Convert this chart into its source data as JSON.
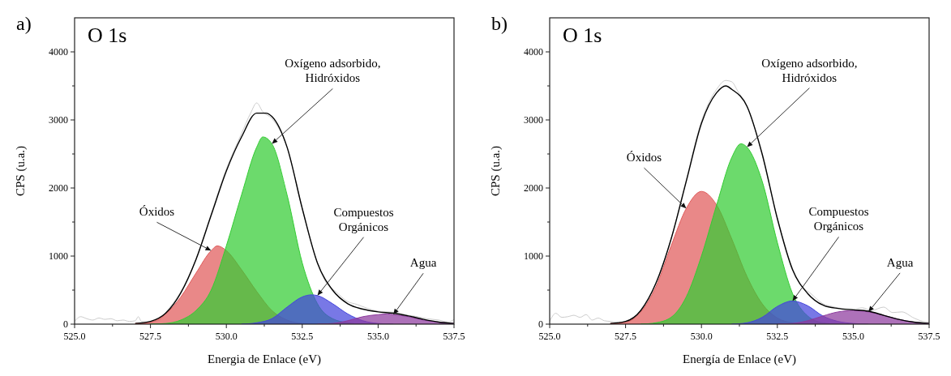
{
  "chart_data": [
    {
      "type": "area",
      "title": "O 1s",
      "xlabel": "Energia de Enlace (eV)",
      "ylabel": "CPS (u.a.)",
      "xlim": [
        525,
        537.5
      ],
      "ylim": [
        0,
        4500
      ],
      "xticks": [
        {
          "value": 525,
          "label": "525.0"
        },
        {
          "value": 526.25,
          "label": null
        },
        {
          "value": 527.5,
          "label": "527.5"
        },
        {
          "value": 528.75,
          "label": null
        },
        {
          "value": 530,
          "label": "530.0"
        },
        {
          "value": 531.25,
          "label": null
        },
        {
          "value": 532.5,
          "label": "532.5"
        },
        {
          "value": 533.75,
          "label": null
        },
        {
          "value": 535,
          "label": "535.0"
        },
        {
          "value": 536.25,
          "label": null
        },
        {
          "value": 537.5,
          "label": "537.5"
        }
      ],
      "yticks": [
        0,
        {
          "value": 500,
          "label": null
        },
        1000,
        {
          "value": 1500,
          "label": null
        },
        2000,
        {
          "value": 2500,
          "label": null
        },
        3000,
        {
          "value": 3500,
          "label": null
        },
        4000
      ],
      "grid": false,
      "annotations": [
        "a)",
        {
          "text": "Óxidos",
          "x": 529.5,
          "y": 1080
        },
        {
          "text": "Oxígeno adsorbido,\nHidróxidos",
          "x": 531.5,
          "y": 2650
        },
        {
          "text": "Compuestos\nOrgánicos",
          "x": 533,
          "y": 420
        },
        {
          "text": "Agua",
          "x": 535.5,
          "y": 140
        }
      ],
      "series": [
        {
          "type": "line",
          "color": "#cccccc",
          "x": [
            525,
            525.2,
            525.4,
            525.6,
            525.8,
            526,
            526.2,
            526.4,
            526.6,
            526.8,
            527,
            527.1,
            527.2,
            527.4,
            527.6,
            527.8,
            528,
            528.5,
            529,
            529.5,
            530,
            530.5,
            530.8,
            531,
            531.2,
            531.5,
            532,
            532.5,
            533,
            533.3,
            533.6,
            534,
            534.3,
            534.6,
            535,
            535.3,
            535.6,
            536,
            536.3,
            536.6,
            537,
            537.3,
            537.5
          ],
          "values": [
            40,
            110,
            80,
            60,
            90,
            70,
            80,
            50,
            60,
            40,
            50,
            110,
            40,
            30,
            40,
            60,
            170,
            480,
            960,
            1620,
            2280,
            2800,
            3100,
            3250,
            3120,
            3020,
            2600,
            1700,
            900,
            600,
            480,
            330,
            290,
            240,
            190,
            180,
            170,
            130,
            110,
            80,
            60,
            30,
            70
          ]
        },
        {
          "color": "#e05a5a",
          "x": [
            527,
            527.5,
            528,
            528.5,
            529,
            529.5,
            529.7,
            530,
            530.5,
            531,
            531.5,
            532,
            532.5,
            533
          ],
          "values": [
            10,
            30,
            150,
            400,
            750,
            1080,
            1150,
            1080,
            800,
            480,
            200,
            60,
            10,
            0
          ]
        },
        {
          "color": "#33cc33",
          "x": [
            527.5,
            528,
            528.5,
            529,
            529.5,
            530,
            530.5,
            531,
            531.2,
            531.5,
            532,
            532.5,
            533,
            533.5,
            534,
            534.5
          ],
          "values": [
            0,
            10,
            60,
            200,
            500,
            1150,
            1900,
            2600,
            2750,
            2650,
            1900,
            900,
            300,
            80,
            20,
            0
          ]
        },
        {
          "color": "#4444dd",
          "x": [
            530.5,
            531,
            531.5,
            532,
            532.5,
            532.8,
            533,
            533.5,
            534,
            534.5,
            535,
            535.5
          ],
          "values": [
            0,
            20,
            80,
            250,
            400,
            430,
            420,
            300,
            150,
            50,
            10,
            0
          ]
        },
        {
          "color": "#8e3a9e",
          "x": [
            533,
            533.5,
            534,
            534.5,
            535,
            535.3,
            535.5,
            536,
            536.5,
            537,
            537.5
          ],
          "values": [
            0,
            10,
            50,
            110,
            140,
            150,
            140,
            110,
            60,
            30,
            10
          ]
        },
        {
          "type": "line",
          "color": "#000000",
          "x": [
            527,
            527.5,
            528,
            528.5,
            529,
            529.5,
            530,
            530.5,
            531,
            531.3,
            531.5,
            532,
            532.5,
            533,
            533.5,
            534,
            534.5,
            535,
            535.5,
            536,
            536.5,
            537,
            537.5
          ],
          "values": [
            10,
            40,
            160,
            460,
            950,
            1600,
            2250,
            2750,
            3100,
            3100,
            3050,
            2600,
            1700,
            900,
            500,
            300,
            220,
            180,
            160,
            120,
            70,
            30,
            10
          ]
        }
      ]
    },
    {
      "type": "area",
      "title": "O 1s",
      "xlabel": "Energía de Enlace (eV)",
      "ylabel": "CPS (u.a.)",
      "xlim": [
        525,
        537.5
      ],
      "ylim": [
        0,
        4500
      ],
      "xticks": [
        {
          "value": 525,
          "label": "525.0"
        },
        {
          "value": 526.25,
          "label": null
        },
        {
          "value": 527.5,
          "label": "527.5"
        },
        {
          "value": 528.75,
          "label": null
        },
        {
          "value": 530,
          "label": "530.0"
        },
        {
          "value": 531.25,
          "label": null
        },
        {
          "value": 532.5,
          "label": "532.5"
        },
        {
          "value": 533.75,
          "label": null
        },
        {
          "value": 535,
          "label": "535.0"
        },
        {
          "value": 536.25,
          "label": null
        },
        {
          "value": 537.5,
          "label": "537.5"
        }
      ],
      "yticks": [
        0,
        {
          "value": 500,
          "label": null
        },
        1000,
        {
          "value": 1500,
          "label": null
        },
        2000,
        {
          "value": 2500,
          "label": null
        },
        3000,
        {
          "value": 3500,
          "label": null
        },
        4000
      ],
      "grid": false,
      "annotations": [
        "b)",
        {
          "text": "Óxidos",
          "x": 529.5,
          "y": 1700
        },
        {
          "text": "Oxígeno adsorbido,\nHidróxidos",
          "x": 531.5,
          "y": 2600
        },
        {
          "text": "Compuestos\nOrgánicos",
          "x": 533,
          "y": 340
        },
        {
          "text": "Agua",
          "x": 535.5,
          "y": 180
        }
      ],
      "series": [
        {
          "type": "line",
          "color": "#cccccc",
          "x": [
            525,
            525.2,
            525.4,
            525.6,
            525.8,
            526,
            526.2,
            526.4,
            526.6,
            526.8,
            527,
            527.2,
            527.4,
            527.6,
            527.8,
            528,
            528.5,
            529,
            529.5,
            530,
            530.5,
            530.8,
            531,
            531.2,
            531.5,
            532,
            532.5,
            533,
            533.3,
            533.6,
            534,
            534.3,
            534.6,
            535,
            535.3,
            535.6,
            536,
            536.3,
            536.6,
            537,
            537.3,
            537.5
          ],
          "values": [
            40,
            160,
            100,
            110,
            130,
            100,
            140,
            60,
            90,
            50,
            40,
            30,
            30,
            40,
            90,
            210,
            610,
            1260,
            2120,
            2980,
            3450,
            3580,
            3560,
            3420,
            3210,
            2480,
            1560,
            820,
            560,
            450,
            300,
            260,
            230,
            220,
            240,
            200,
            250,
            170,
            180,
            90,
            40,
            30
          ]
        },
        {
          "color": "#e05a5a",
          "x": [
            527,
            527.5,
            528,
            528.5,
            529,
            529.5,
            530,
            530.5,
            531,
            531.5,
            532,
            532.5,
            533,
            533.5
          ],
          "values": [
            10,
            30,
            180,
            550,
            1150,
            1700,
            1950,
            1750,
            1250,
            700,
            300,
            90,
            20,
            0
          ]
        },
        {
          "color": "#33cc33",
          "x": [
            528,
            528.5,
            529,
            529.5,
            530,
            530.5,
            531,
            531.3,
            531.5,
            532,
            532.5,
            533,
            533.5,
            534,
            534.5
          ],
          "values": [
            0,
            20,
            100,
            400,
            1000,
            1750,
            2450,
            2650,
            2600,
            2100,
            1200,
            450,
            120,
            20,
            0
          ]
        },
        {
          "color": "#4444dd",
          "x": [
            531,
            531.5,
            532,
            532.5,
            533,
            533.5,
            534,
            534.5,
            535,
            535.5
          ],
          "values": [
            0,
            20,
            100,
            260,
            340,
            270,
            120,
            40,
            10,
            0
          ]
        },
        {
          "color": "#8e3a9e",
          "x": [
            532.5,
            533,
            533.5,
            534,
            534.5,
            535,
            535.5,
            536,
            536.5,
            537,
            537.5
          ],
          "values": [
            0,
            10,
            50,
            120,
            180,
            200,
            180,
            130,
            70,
            30,
            10
          ]
        },
        {
          "type": "line",
          "color": "#000000",
          "x": [
            527,
            527.5,
            528,
            528.5,
            529,
            529.5,
            530,
            530.5,
            530.8,
            531,
            531.5,
            532,
            532.5,
            533,
            533.5,
            534,
            534.5,
            535,
            535.5,
            536,
            536.5,
            537,
            537.5
          ],
          "values": [
            10,
            40,
            200,
            600,
            1250,
            2100,
            2950,
            3400,
            3500,
            3450,
            3200,
            2500,
            1550,
            800,
            450,
            280,
            230,
            210,
            190,
            130,
            70,
            30,
            10
          ]
        }
      ]
    }
  ]
}
